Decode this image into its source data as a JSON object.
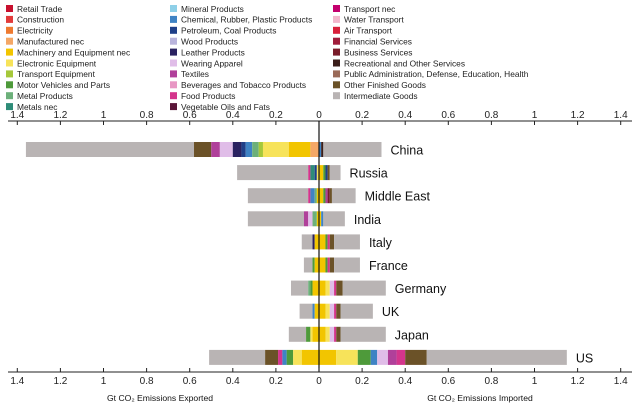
{
  "chart_data": {
    "type": "bar",
    "orientation": "horizontal",
    "stacked": true,
    "diverging": true,
    "xlabel_left": "Gt CO₂ Emissions Exported",
    "xlabel_right": "Gt CO₂ Emissions Imported",
    "xlim": [
      -1.4,
      1.4
    ],
    "tick_values": [
      -1.4,
      -1.2,
      -1.0,
      -0.8,
      -0.6,
      -0.4,
      -0.2,
      0,
      0.2,
      0.4,
      0.6,
      0.8,
      1.0,
      1.2,
      1.4
    ],
    "tick_labels": [
      "1.4",
      "1.2",
      "1",
      "0.8",
      "0.6",
      "0.4",
      "0.2",
      "0",
      "0.2",
      "0.4",
      "0.6",
      "0.8",
      "1",
      "1.2",
      "1.4"
    ],
    "legend_position": "top",
    "legend": [
      {
        "name": "Retail Trade",
        "color": "#c8102e"
      },
      {
        "name": "Construction",
        "color": "#e23a3a"
      },
      {
        "name": "Electricity",
        "color": "#ee7a30"
      },
      {
        "name": "Manufactured nec",
        "color": "#f4a766"
      },
      {
        "name": "Machinery and Equipment nec",
        "color": "#f2c500"
      },
      {
        "name": "Electronic Equipment",
        "color": "#f7e35a"
      },
      {
        "name": "Transport Equipment",
        "color": "#a6c83a"
      },
      {
        "name": "Motor Vehicles and Parts",
        "color": "#4e9a3a"
      },
      {
        "name": "Metal Products",
        "color": "#6cb07a"
      },
      {
        "name": "Metals nec",
        "color": "#2e8c78"
      },
      {
        "name": "Mineral Products",
        "color": "#8fd0e8"
      },
      {
        "name": "Chemical, Rubber, Plastic Products",
        "color": "#3f83c4"
      },
      {
        "name": "Petroleum, Coal Products",
        "color": "#1f3f88"
      },
      {
        "name": "Wood Products",
        "color": "#b9b4dc"
      },
      {
        "name": "Leather Products",
        "color": "#2a2260"
      },
      {
        "name": "Wearing Apparel",
        "color": "#e0bde8"
      },
      {
        "name": "Textiles",
        "color": "#b0409a"
      },
      {
        "name": "Beverages and Tobacco Products",
        "color": "#e897c4"
      },
      {
        "name": "Food Products",
        "color": "#d4358c"
      },
      {
        "name": "Vegetable Oils and Fats",
        "color": "#5a1638"
      },
      {
        "name": "Transport nec",
        "color": "#c4006e"
      },
      {
        "name": "Water Transport",
        "color": "#f3b7cc"
      },
      {
        "name": "Air Transport",
        "color": "#d81f3a"
      },
      {
        "name": "Financial Services",
        "color": "#a01c3a"
      },
      {
        "name": "Business Services",
        "color": "#7a1c2a"
      },
      {
        "name": "Recreational and Other Services",
        "color": "#3a1e1a"
      },
      {
        "name": "Public Administration, Defense, Education, Health",
        "color": "#9a6a58"
      },
      {
        "name": "Other Finished Goods",
        "color": "#6b5228"
      },
      {
        "name": "Intermediate Goods",
        "color": "#b9b4b4"
      }
    ],
    "categories": [
      "China",
      "Russia",
      "Middle East",
      "India",
      "Italy",
      "France",
      "Germany",
      "UK",
      "Japan",
      "US"
    ],
    "series": [
      {
        "name": "China",
        "exported": [
          {
            "item": "Intermediate Goods",
            "value": 0.78
          },
          {
            "item": "Other Finished Goods",
            "value": 0.08
          },
          {
            "item": "Textiles",
            "value": 0.04
          },
          {
            "item": "Wearing Apparel",
            "value": 0.06
          },
          {
            "item": "Leather Products",
            "value": 0.04
          },
          {
            "item": "Petroleum, Coal Products",
            "value": 0.02
          },
          {
            "item": "Chemical, Rubber, Plastic Products",
            "value": 0.03
          },
          {
            "item": "Metal Products",
            "value": 0.03
          },
          {
            "item": "Transport Equipment",
            "value": 0.02
          },
          {
            "item": "Electronic Equipment",
            "value": 0.12
          },
          {
            "item": "Machinery and Equipment nec",
            "value": 0.1
          },
          {
            "item": "Manufactured nec",
            "value": 0.04
          }
        ],
        "imported": [
          {
            "item": "Chemical, Rubber, Plastic Products",
            "value": 0.01
          },
          {
            "item": "Recreational and Other Services",
            "value": 0.01
          },
          {
            "item": "Intermediate Goods",
            "value": 0.27
          }
        ]
      },
      {
        "name": "Russia",
        "exported": [
          {
            "item": "Intermediate Goods",
            "value": 0.33
          },
          {
            "item": "Food Products",
            "value": 0.01
          },
          {
            "item": "Metals nec",
            "value": 0.02
          },
          {
            "item": "Petroleum, Coal Products",
            "value": 0.01
          },
          {
            "item": "Electronic Equipment",
            "value": 0.01
          }
        ],
        "imported": [
          {
            "item": "Machinery and Equipment nec",
            "value": 0.02
          },
          {
            "item": "Motor Vehicles and Parts",
            "value": 0.01
          },
          {
            "item": "Petroleum, Coal Products",
            "value": 0.01
          },
          {
            "item": "Other Finished Goods",
            "value": 0.01
          },
          {
            "item": "Intermediate Goods",
            "value": 0.05
          }
        ]
      },
      {
        "name": "Middle East",
        "exported": [
          {
            "item": "Intermediate Goods",
            "value": 0.28
          },
          {
            "item": "Food Products",
            "value": 0.01
          },
          {
            "item": "Chemical, Rubber, Plastic Products",
            "value": 0.02
          },
          {
            "item": "Metal Products",
            "value": 0.01
          },
          {
            "item": "Machinery and Equipment nec",
            "value": 0.01
          }
        ],
        "imported": [
          {
            "item": "Machinery and Equipment nec",
            "value": 0.02
          },
          {
            "item": "Motor Vehicles and Parts",
            "value": 0.01
          },
          {
            "item": "Textiles",
            "value": 0.01
          },
          {
            "item": "Business Services",
            "value": 0.01
          },
          {
            "item": "Other Finished Goods",
            "value": 0.01
          },
          {
            "item": "Intermediate Goods",
            "value": 0.11
          }
        ]
      },
      {
        "name": "India",
        "exported": [
          {
            "item": "Intermediate Goods",
            "value": 0.26
          },
          {
            "item": "Textiles",
            "value": 0.02
          },
          {
            "item": "Wearing Apparel",
            "value": 0.02
          },
          {
            "item": "Metal Products",
            "value": 0.02
          },
          {
            "item": "Machinery and Equipment nec",
            "value": 0.01
          }
        ],
        "imported": [
          {
            "item": "Machinery and Equipment nec",
            "value": 0.01
          },
          {
            "item": "Chemical, Rubber, Plastic Products",
            "value": 0.01
          },
          {
            "item": "Intermediate Goods",
            "value": 0.1
          }
        ]
      },
      {
        "name": "Italy",
        "exported": [
          {
            "item": "Intermediate Goods",
            "value": 0.05
          },
          {
            "item": "Leather Products",
            "value": 0.01
          },
          {
            "item": "Machinery and Equipment nec",
            "value": 0.02
          }
        ],
        "imported": [
          {
            "item": "Machinery and Equipment nec",
            "value": 0.03
          },
          {
            "item": "Motor Vehicles and Parts",
            "value": 0.01
          },
          {
            "item": "Food Products",
            "value": 0.01
          },
          {
            "item": "Other Finished Goods",
            "value": 0.02
          },
          {
            "item": "Intermediate Goods",
            "value": 0.12
          }
        ]
      },
      {
        "name": "France",
        "exported": [
          {
            "item": "Intermediate Goods",
            "value": 0.04
          },
          {
            "item": "Motor Vehicles and Parts",
            "value": 0.01
          },
          {
            "item": "Machinery and Equipment nec",
            "value": 0.02
          }
        ],
        "imported": [
          {
            "item": "Machinery and Equipment nec",
            "value": 0.03
          },
          {
            "item": "Motor Vehicles and Parts",
            "value": 0.01
          },
          {
            "item": "Food Products",
            "value": 0.01
          },
          {
            "item": "Other Finished Goods",
            "value": 0.02
          },
          {
            "item": "Intermediate Goods",
            "value": 0.12
          }
        ]
      },
      {
        "name": "Germany",
        "exported": [
          {
            "item": "Intermediate Goods",
            "value": 0.08
          },
          {
            "item": "Metal Products",
            "value": 0.01
          },
          {
            "item": "Motor Vehicles and Parts",
            "value": 0.01
          },
          {
            "item": "Machinery and Equipment nec",
            "value": 0.03
          }
        ],
        "imported": [
          {
            "item": "Machinery and Equipment nec",
            "value": 0.03
          },
          {
            "item": "Electronic Equipment",
            "value": 0.02
          },
          {
            "item": "Wearing Apparel",
            "value": 0.02
          },
          {
            "item": "Food Products",
            "value": 0.01
          },
          {
            "item": "Other Finished Goods",
            "value": 0.03
          },
          {
            "item": "Intermediate Goods",
            "value": 0.2
          }
        ]
      },
      {
        "name": "UK",
        "exported": [
          {
            "item": "Intermediate Goods",
            "value": 0.06
          },
          {
            "item": "Chemical, Rubber, Plastic Products",
            "value": 0.01
          },
          {
            "item": "Machinery and Equipment nec",
            "value": 0.02
          }
        ],
        "imported": [
          {
            "item": "Machinery and Equipment nec",
            "value": 0.03
          },
          {
            "item": "Electronic Equipment",
            "value": 0.02
          },
          {
            "item": "Wearing Apparel",
            "value": 0.02
          },
          {
            "item": "Food Products",
            "value": 0.01
          },
          {
            "item": "Other Finished Goods",
            "value": 0.02
          },
          {
            "item": "Intermediate Goods",
            "value": 0.15
          }
        ]
      },
      {
        "name": "Japan",
        "exported": [
          {
            "item": "Intermediate Goods",
            "value": 0.08
          },
          {
            "item": "Motor Vehicles and Parts",
            "value": 0.02
          },
          {
            "item": "Electronic Equipment",
            "value": 0.01
          },
          {
            "item": "Machinery and Equipment nec",
            "value": 0.03
          }
        ],
        "imported": [
          {
            "item": "Machinery and Equipment nec",
            "value": 0.03
          },
          {
            "item": "Electronic Equipment",
            "value": 0.02
          },
          {
            "item": "Wearing Apparel",
            "value": 0.02
          },
          {
            "item": "Food Products",
            "value": 0.01
          },
          {
            "item": "Other Finished Goods",
            "value": 0.02
          },
          {
            "item": "Intermediate Goods",
            "value": 0.21
          }
        ]
      },
      {
        "name": "US",
        "exported": [
          {
            "item": "Intermediate Goods",
            "value": 0.26
          },
          {
            "item": "Other Finished Goods",
            "value": 0.06
          },
          {
            "item": "Food Products",
            "value": 0.02
          },
          {
            "item": "Chemical, Rubber, Plastic Products",
            "value": 0.02
          },
          {
            "item": "Motor Vehicles and Parts",
            "value": 0.03
          },
          {
            "item": "Electronic Equipment",
            "value": 0.04
          },
          {
            "item": "Machinery and Equipment nec",
            "value": 0.08
          }
        ],
        "imported": [
          {
            "item": "Machinery and Equipment nec",
            "value": 0.08
          },
          {
            "item": "Electronic Equipment",
            "value": 0.1
          },
          {
            "item": "Motor Vehicles and Parts",
            "value": 0.06
          },
          {
            "item": "Chemical, Rubber, Plastic Products",
            "value": 0.03
          },
          {
            "item": "Wearing Apparel",
            "value": 0.05
          },
          {
            "item": "Textiles",
            "value": 0.04
          },
          {
            "item": "Food Products",
            "value": 0.04
          },
          {
            "item": "Other Finished Goods",
            "value": 0.1
          },
          {
            "item": "Intermediate Goods",
            "value": 0.65
          }
        ]
      }
    ]
  }
}
